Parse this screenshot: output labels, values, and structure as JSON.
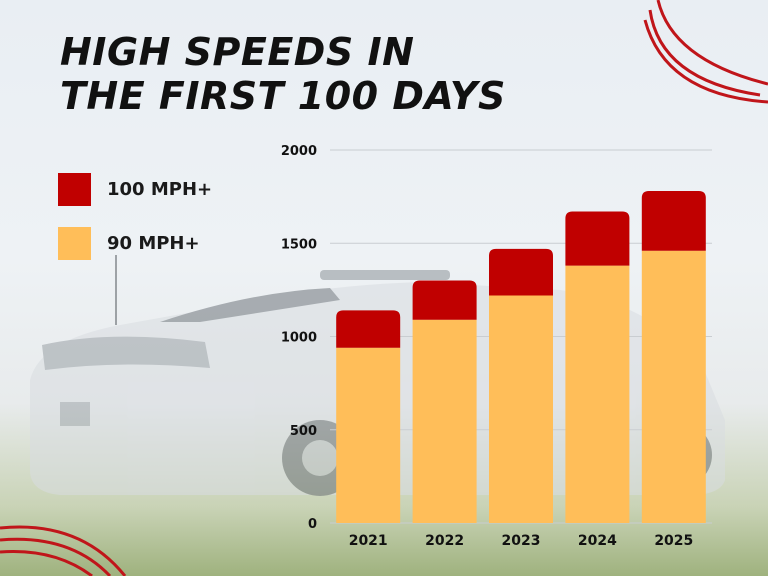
{
  "title": "HIGH SPEEDS IN\nTHE FIRST 100 DAYS",
  "colors": {
    "bar_100": "#c00000",
    "bar_90": "#ffbe59",
    "grid": "#c9cdd1",
    "text": "#111111",
    "swirl": "#c0151a"
  },
  "legend": [
    {
      "label": "100 MPH+",
      "color": "#c00000"
    },
    {
      "label": "90 MPH+",
      "color": "#ffbe59"
    }
  ],
  "chart_data": {
    "type": "bar",
    "stacked": true,
    "categories": [
      "2021",
      "2022",
      "2023",
      "2024",
      "2025"
    ],
    "series": [
      {
        "name": "90 MPH+",
        "values": [
          940,
          1090,
          1220,
          1380,
          1460
        ]
      },
      {
        "name": "100 MPH+",
        "values": [
          200,
          210,
          250,
          290,
          320
        ]
      }
    ],
    "ylim": [
      0,
      2000
    ],
    "yticks": [
      "0",
      "500",
      "1000",
      "1500",
      "2000"
    ],
    "grid": true,
    "legend_position": "left"
  }
}
